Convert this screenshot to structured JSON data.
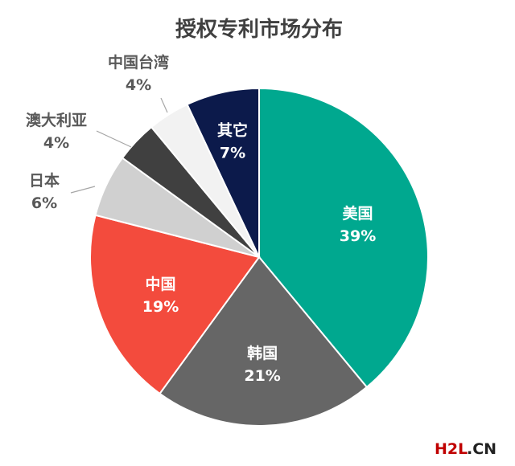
{
  "chart_data": {
    "type": "pie",
    "title": "授权专利市场分布",
    "start_angle_deg": 0,
    "direction": "clockwise",
    "slices": [
      {
        "label": "美国",
        "value": 39,
        "value_label": "39%",
        "color": "#00A88F",
        "label_style": "inside"
      },
      {
        "label": "韩国",
        "value": 21,
        "value_label": "21%",
        "color": "#666666",
        "label_style": "inside"
      },
      {
        "label": "中国",
        "value": 19,
        "value_label": "19%",
        "color": "#F34B3D",
        "label_style": "inside"
      },
      {
        "label": "日本",
        "value": 6,
        "value_label": "6%",
        "color": "#D0D0D0",
        "label_style": "outside"
      },
      {
        "label": "澳大利亚",
        "value": 4,
        "value_label": "4%",
        "color": "#404040",
        "label_style": "outside"
      },
      {
        "label": "中国台湾",
        "value": 4,
        "value_label": "4%",
        "color": "#F2F2F2",
        "label_style": "outside"
      },
      {
        "label": "其它",
        "value": 7,
        "value_label": "7%",
        "color": "#0C1A4B",
        "label_style": "inside"
      }
    ]
  },
  "watermark": {
    "text_red": "H2L",
    "text_dark": ".CN"
  }
}
